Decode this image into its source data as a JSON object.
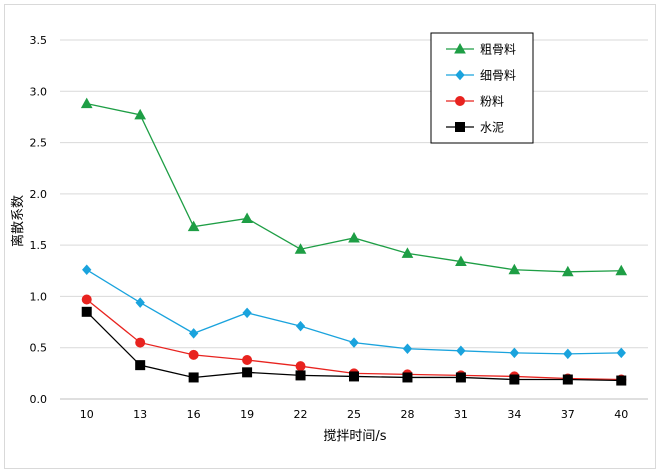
{
  "chart_data": {
    "type": "line",
    "title": "",
    "xlabel": "搅拌时间/s",
    "ylabel": "离散系数",
    "x": [
      10,
      13,
      16,
      19,
      22,
      25,
      28,
      31,
      34,
      37,
      40
    ],
    "x_tick_labels": [
      "10",
      "13",
      "16",
      "19",
      "22",
      "25",
      "28",
      "31",
      "34",
      "37",
      "40"
    ],
    "ylim": [
      0.0,
      3.5
    ],
    "y_ticks": [
      0.0,
      0.5,
      1.0,
      1.5,
      2.0,
      2.5,
      3.0,
      3.5
    ],
    "y_tick_labels": [
      "0.0",
      "0.5",
      "1.0",
      "1.5",
      "2.0",
      "2.5",
      "3.0",
      "3.5"
    ],
    "grid": "horizontal",
    "legend_position": "top-right",
    "series": [
      {
        "name": "粗骨料",
        "marker": "triangle",
        "color": "#1e9e45",
        "values": [
          2.88,
          2.77,
          1.68,
          1.76,
          1.46,
          1.57,
          1.42,
          1.34,
          1.26,
          1.24,
          1.25
        ]
      },
      {
        "name": "细骨料",
        "marker": "diamond",
        "color": "#1aa3dd",
        "values": [
          1.26,
          0.94,
          0.64,
          0.84,
          0.71,
          0.55,
          0.49,
          0.47,
          0.45,
          0.44,
          0.45
        ]
      },
      {
        "name": "粉料",
        "marker": "circle",
        "color": "#e8231f",
        "values": [
          0.97,
          0.55,
          0.43,
          0.38,
          0.32,
          0.25,
          0.24,
          0.23,
          0.22,
          0.2,
          0.19
        ]
      },
      {
        "name": "水泥",
        "marker": "square",
        "color": "#000000",
        "values": [
          0.85,
          0.33,
          0.21,
          0.26,
          0.23,
          0.22,
          0.21,
          0.21,
          0.19,
          0.19,
          0.18
        ]
      }
    ]
  }
}
